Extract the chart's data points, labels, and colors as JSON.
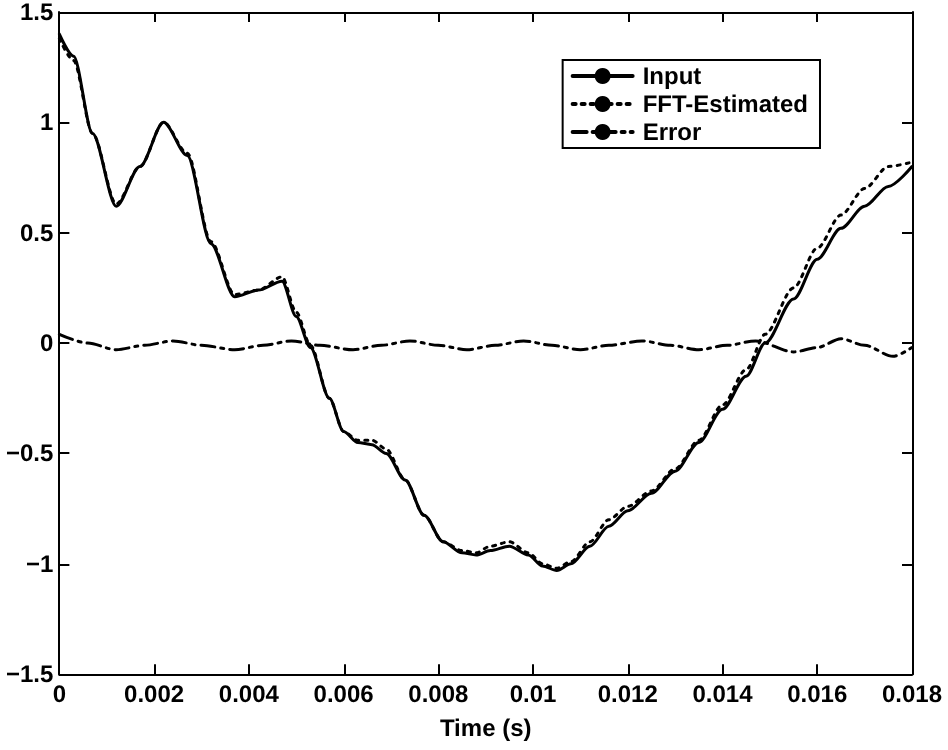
{
  "chart_data": {
    "type": "line",
    "xlabel": "Time (s)",
    "xlim": [
      0,
      0.018
    ],
    "xticks": [
      0,
      0.002,
      0.004,
      0.006,
      0.008,
      0.01,
      0.012,
      0.014,
      0.016,
      0.018
    ],
    "ylim": [
      -1.5,
      1.5
    ],
    "yticks": [
      -1.5,
      -1,
      -0.5,
      0,
      0.5,
      1,
      1.5
    ],
    "grid": false,
    "legend": "top right",
    "marker": "none",
    "series": [
      {
        "name": "Input",
        "color": "#000000",
        "line_style": "solid",
        "x": [
          0,
          0.0003,
          0.0007,
          0.0012,
          0.0017,
          0.0022,
          0.0027,
          0.0032,
          0.0037,
          0.0042,
          0.0047,
          0.005,
          0.0053,
          0.0057,
          0.006,
          0.0063,
          0.0066,
          0.0069,
          0.0073,
          0.0077,
          0.0081,
          0.0085,
          0.0088,
          0.0091,
          0.0095,
          0.0099,
          0.0102,
          0.0105,
          0.0108,
          0.0112,
          0.0116,
          0.012,
          0.0125,
          0.013,
          0.0135,
          0.014,
          0.0145,
          0.0149,
          0.0155,
          0.016,
          0.0165,
          0.017,
          0.0175,
          0.018
        ],
        "values": [
          1.4,
          1.3,
          0.95,
          0.62,
          0.8,
          1.0,
          0.85,
          0.45,
          0.21,
          0.24,
          0.28,
          0.12,
          -0.02,
          -0.25,
          -0.4,
          -0.45,
          -0.46,
          -0.5,
          -0.62,
          -0.78,
          -0.9,
          -0.95,
          -0.96,
          -0.94,
          -0.92,
          -0.96,
          -1.01,
          -1.03,
          -1.0,
          -0.92,
          -0.83,
          -0.76,
          -0.68,
          -0.58,
          -0.45,
          -0.3,
          -0.15,
          0.0,
          0.2,
          0.38,
          0.52,
          0.62,
          0.71,
          0.8
        ]
      },
      {
        "name": "FFT-Estimated",
        "color": "#000000",
        "line_style": "dotted",
        "x": [
          0,
          0.0003,
          0.0007,
          0.0012,
          0.0017,
          0.0022,
          0.0027,
          0.0032,
          0.0037,
          0.0042,
          0.0047,
          0.005,
          0.0053,
          0.0057,
          0.006,
          0.0063,
          0.0066,
          0.0069,
          0.0073,
          0.0077,
          0.0081,
          0.0085,
          0.0088,
          0.0091,
          0.0095,
          0.0099,
          0.0102,
          0.0105,
          0.0108,
          0.0112,
          0.0116,
          0.012,
          0.0125,
          0.013,
          0.0135,
          0.014,
          0.0145,
          0.0149,
          0.0155,
          0.016,
          0.0165,
          0.017,
          0.0175,
          0.018
        ],
        "values": [
          1.38,
          1.28,
          0.95,
          0.63,
          0.8,
          1.0,
          0.86,
          0.46,
          0.22,
          0.24,
          0.3,
          0.14,
          -0.01,
          -0.25,
          -0.4,
          -0.44,
          -0.44,
          -0.48,
          -0.62,
          -0.78,
          -0.9,
          -0.94,
          -0.95,
          -0.92,
          -0.9,
          -0.95,
          -1.0,
          -1.02,
          -0.99,
          -0.9,
          -0.8,
          -0.74,
          -0.67,
          -0.57,
          -0.44,
          -0.28,
          -0.12,
          0.04,
          0.25,
          0.43,
          0.58,
          0.7,
          0.8,
          0.82
        ]
      },
      {
        "name": "Error",
        "color": "#000000",
        "line_style": "dashdot",
        "x": [
          0,
          0.0006,
          0.0012,
          0.0018,
          0.0024,
          0.003,
          0.0037,
          0.0043,
          0.0049,
          0.0055,
          0.0062,
          0.0068,
          0.0074,
          0.008,
          0.0086,
          0.0092,
          0.0098,
          0.0104,
          0.011,
          0.0116,
          0.0123,
          0.0129,
          0.0135,
          0.0141,
          0.0147,
          0.0155,
          0.016,
          0.0165,
          0.017,
          0.0176,
          0.018
        ],
        "values": [
          0.04,
          0.0,
          -0.03,
          -0.01,
          0.01,
          -0.01,
          -0.03,
          -0.01,
          0.01,
          -0.01,
          -0.03,
          -0.01,
          0.01,
          -0.01,
          -0.03,
          -0.01,
          0.01,
          -0.01,
          -0.03,
          -0.01,
          0.01,
          -0.01,
          -0.03,
          -0.01,
          0.01,
          -0.04,
          -0.02,
          0.02,
          -0.01,
          -0.06,
          -0.02
        ]
      }
    ]
  }
}
